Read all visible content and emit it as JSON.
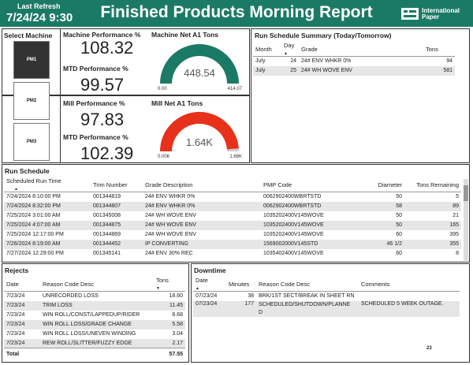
{
  "header": {
    "last_refresh_label": "Last Refresh",
    "refresh_datetime": "7/24/24 9:30",
    "title": "Finished Products Morning Report",
    "logo_line1": "International",
    "logo_line2": "Paper",
    "bg_color": "#1b7a66"
  },
  "machines": {
    "title": "Select Machine",
    "items": [
      {
        "label": "PM1",
        "selected": true
      },
      {
        "label": "PM2",
        "selected": false
      },
      {
        "label": "PM3",
        "selected": false
      }
    ]
  },
  "kpis": {
    "machine_perf_label": "Machine Performance %",
    "machine_perf_value": "108.32",
    "mtd_perf_label": "MTD Performance %",
    "mtd_perf_value": "99.57",
    "mill_perf_label": "Mill Performance %",
    "mill_perf_value": "97.83",
    "mill_mtd_perf_label": "MTD Performance %",
    "mill_mtd_perf_value": "102.39"
  },
  "gauges": {
    "machine": {
      "title": "Machine Net A1 Tons",
      "value": "448.54",
      "min": "0.00",
      "max": "414.07",
      "fill_fraction": 1.0,
      "color": "#1b7a66"
    },
    "mill": {
      "title": "Mill Net A1 Tons",
      "value": "1.64K",
      "min": "0.00K",
      "max": "1.68K",
      "fill_fraction": 0.976,
      "color": "#e8311b"
    }
  },
  "run_summary": {
    "title": "Run Schedule Summary (Today/Tomorrow)",
    "columns": [
      "Month",
      "Day",
      "Grade",
      "Tons"
    ],
    "rows": [
      {
        "month": "July",
        "day": "24",
        "grade": "24# ENV WHKR 0%",
        "tons": "94"
      },
      {
        "month": "July",
        "day": "25",
        "grade": "24# WH WOVE ENV",
        "tons": "581"
      }
    ]
  },
  "run_schedule": {
    "title": "Run Schedule",
    "columns": [
      "Scheduled Run Time",
      "Trim Number",
      "Grade Description",
      "PMP Code",
      "Diameter",
      "Tons Remaining"
    ],
    "rows": [
      {
        "time": "7/24/2024 8:10:00 PM",
        "trim": "001344819",
        "grade": "24# ENV WHKR 0%",
        "pmp": "0062902400WBRTSTD",
        "dia": "50",
        "tons": "5"
      },
      {
        "time": "7/24/2024 8:32:00 PM",
        "trim": "001344807",
        "grade": "24# ENV WHKR 0%",
        "pmp": "0062902400WBRTSTD",
        "dia": "58",
        "tons": "89"
      },
      {
        "time": "7/25/2024 3:01:00 AM",
        "trim": "001345008",
        "grade": "24# WH WOVE ENV",
        "pmp": "1035202400V145WOVE",
        "dia": "50",
        "tons": "21"
      },
      {
        "time": "7/25/2024 4:07:00 AM",
        "trim": "001344875",
        "grade": "24# WH WOVE ENV",
        "pmp": "1035202400V145WOVE",
        "dia": "50",
        "tons": "165"
      },
      {
        "time": "7/25/2024 12:17:00 PM",
        "trim": "001344869",
        "grade": "24# WH WOVE ENV",
        "pmp": "1035202400V145WOVE",
        "dia": "60",
        "tons": "395"
      },
      {
        "time": "7/26/2024 8:19:00 AM",
        "trim": "001344452",
        "grade": "IP CONVERTING",
        "pmp": "1569002000V145STD",
        "dia": "46 1/2",
        "tons": "355"
      },
      {
        "time": "7/27/2024 12:29:00 PM",
        "trim": "001345141",
        "grade": "24# ENV 30% REC",
        "pmp": "1035402400V145WOVE",
        "dia": "60",
        "tons": "8"
      }
    ]
  },
  "rejects": {
    "title": "Rejects",
    "columns": [
      "Date",
      "Reason Code Desc",
      "Tons"
    ],
    "rows": [
      {
        "date": "7/23/24",
        "reason": "UNRECORDED LOSS",
        "tons": "18.60"
      },
      {
        "date": "7/23/24",
        "reason": "TRIM LOSS",
        "tons": "11.45"
      },
      {
        "date": "7/23/24",
        "reason": "WIN ROLL/CONST/LAPPEDUP/RIDER",
        "tons": "8.68"
      },
      {
        "date": "7/23/24",
        "reason": "WIN ROLL LOSS/GRADE CHANGE",
        "tons": "5.58"
      },
      {
        "date": "7/23/24",
        "reason": "WIN ROLL LOSS/UNEVEN WINDING",
        "tons": "3.04"
      },
      {
        "date": "7/23/24",
        "reason": "REW ROLL/SLITTER/FUZZY EDGE",
        "tons": "2.17"
      }
    ],
    "total_label": "Total",
    "total_value": "57.55"
  },
  "downtime": {
    "title": "Downtime",
    "columns": [
      "Date",
      "Minutes",
      "Reason Code Desc",
      "Comments"
    ],
    "rows": [
      {
        "date": "07/23/24",
        "minutes": "38",
        "reason": "BRK/1ST SECT/BREAK IN SHEET RN",
        "comments": ""
      },
      {
        "date": "07/23/24",
        "minutes": "177",
        "reason": "SCHEDULED/SHUTDOWN/PLANNE",
        "reason2": "D",
        "comments": "SCHEDULED 5 WEEK OUTAGE."
      }
    ],
    "footer_number": "23"
  }
}
